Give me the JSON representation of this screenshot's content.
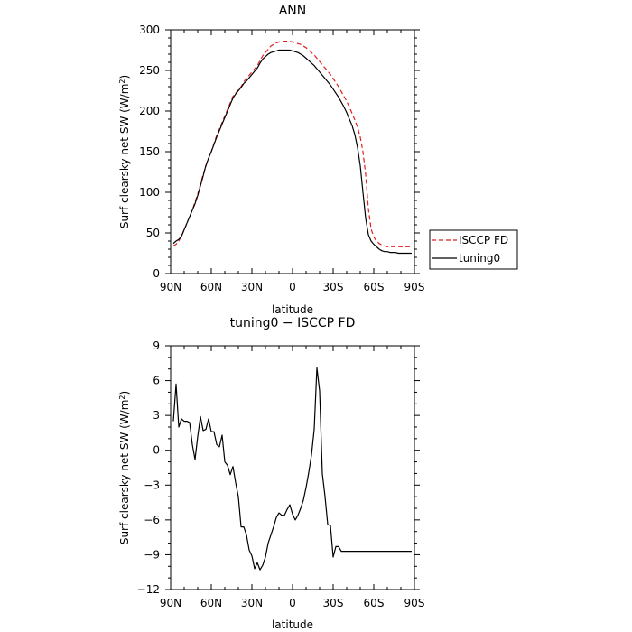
{
  "chart_data": [
    {
      "type": "line",
      "title": "ANN",
      "xlabel": "latitude",
      "ylabel": "Surf clearsky net SW (W/m²)",
      "ylabel_main": "Surf clearsky net SW (W/m",
      "ylabel_sup": "2",
      "ylabel_end": ")",
      "xlim": [
        -90,
        90
      ],
      "ylim": [
        0,
        300
      ],
      "x_ticks": [
        -90,
        -60,
        -30,
        0,
        30,
        60,
        90
      ],
      "x_tick_labels": [
        "90N",
        "60N",
        "30N",
        "0",
        "30S",
        "60S",
        "90S"
      ],
      "y_ticks": [
        0,
        50,
        100,
        150,
        200,
        250,
        300
      ],
      "y_tick_labels": [
        "0",
        "50",
        "100",
        "150",
        "200",
        "250",
        "300"
      ],
      "legend_position": "right",
      "series": [
        {
          "name": "ISCCP FD",
          "color": "#e02020",
          "dash": "dashed",
          "x": [
            -88,
            -86,
            -84,
            -82,
            -80,
            -78,
            -76,
            -74,
            -72,
            -70,
            -68,
            -66,
            -64,
            -62,
            -60,
            -58,
            -56,
            -54,
            -52,
            -50,
            -48,
            -46,
            -44,
            -42,
            -40,
            -38,
            -36,
            -34,
            -32,
            -30,
            -28,
            -26,
            -24,
            -22,
            -20,
            -18,
            -16,
            -14,
            -12,
            -10,
            -8,
            -6,
            -4,
            -2,
            0,
            2,
            4,
            6,
            8,
            10,
            12,
            14,
            16,
            18,
            20,
            22,
            24,
            26,
            28,
            30,
            32,
            34,
            36,
            38,
            40,
            42,
            44,
            46,
            48,
            50,
            52,
            54,
            56,
            58,
            60,
            62,
            64,
            66,
            68,
            70,
            72,
            74,
            76,
            78,
            80,
            82,
            84,
            86,
            88
          ],
          "values": [
            34,
            36,
            40,
            46,
            54,
            62,
            70,
            78,
            88,
            98,
            110,
            122,
            132,
            142,
            150,
            160,
            170,
            178,
            186,
            194,
            202,
            210,
            218,
            222,
            226,
            230,
            236,
            240,
            244,
            248,
            252,
            256,
            262,
            268,
            272,
            276,
            280,
            282,
            284,
            285,
            286,
            286,
            286,
            286,
            285,
            284,
            283,
            282,
            280,
            278,
            275,
            272,
            269,
            265,
            261,
            257,
            253,
            249,
            245,
            240,
            235,
            230,
            224,
            218,
            212,
            205,
            197,
            189,
            180,
            168,
            150,
            122,
            80,
            55,
            45,
            40,
            37,
            35,
            34,
            33,
            33,
            33,
            33,
            33,
            33,
            33,
            33,
            33,
            33
          ],
          "values_visible_note": ""
        },
        {
          "name": "tuning0",
          "color": "#000000",
          "dash": "solid",
          "x": [
            -88,
            -86,
            -84,
            -82,
            -80,
            -78,
            -76,
            -74,
            -72,
            -70,
            -68,
            -66,
            -64,
            -62,
            -60,
            -58,
            -56,
            -54,
            -52,
            -50,
            -48,
            -46,
            -44,
            -42,
            -40,
            -38,
            -36,
            -34,
            -32,
            -30,
            -28,
            -26,
            -24,
            -22,
            -20,
            -18,
            -16,
            -14,
            -12,
            -10,
            -8,
            -6,
            -4,
            -2,
            0,
            2,
            4,
            6,
            8,
            10,
            12,
            14,
            16,
            18,
            20,
            22,
            24,
            26,
            28,
            30,
            32,
            34,
            36,
            38,
            40,
            42,
            44,
            46,
            48,
            50,
            52,
            54,
            56,
            58,
            60,
            62,
            64,
            66,
            68,
            70,
            72,
            74,
            76,
            78,
            80,
            82,
            84,
            86,
            88
          ],
          "values": [
            37,
            40,
            42,
            46,
            54,
            62,
            70,
            78,
            86,
            96,
            108,
            120,
            133,
            142,
            150,
            159,
            168,
            176,
            184,
            192,
            200,
            208,
            216,
            221,
            225,
            229,
            234,
            237,
            241,
            245,
            249,
            253,
            259,
            264,
            267,
            270,
            272,
            273,
            274,
            275,
            275,
            275,
            275,
            275,
            274,
            273,
            272,
            270,
            268,
            265,
            262,
            259,
            256,
            252,
            248,
            244,
            240,
            236,
            232,
            227,
            222,
            217,
            211,
            205,
            198,
            190,
            182,
            171,
            155,
            133,
            100,
            68,
            48,
            40,
            36,
            33,
            30,
            28,
            27,
            27,
            26,
            26,
            26,
            25,
            25,
            25,
            25,
            25,
            25
          ]
        }
      ]
    },
    {
      "type": "line",
      "title": "tuning0 − ISCCP FD",
      "xlabel": "latitude",
      "ylabel": "Surf clearsky net SW (W/m²)",
      "ylabel_main": "Surf clearsky net SW (W/m",
      "ylabel_sup": "2",
      "ylabel_end": ")",
      "xlim": [
        -90,
        90
      ],
      "ylim": [
        -12,
        9
      ],
      "x_ticks": [
        -90,
        -60,
        -30,
        0,
        30,
        60,
        90
      ],
      "x_tick_labels": [
        "90N",
        "60N",
        "30N",
        "0",
        "30S",
        "60S",
        "90S"
      ],
      "y_ticks": [
        -12,
        -9,
        -6,
        -3,
        0,
        3,
        6,
        9
      ],
      "y_tick_labels": [
        "−12",
        "−9",
        "−6",
        "−3",
        "0",
        "3",
        "6",
        "9"
      ],
      "series": [
        {
          "color": "#000000",
          "dash": "solid",
          "x": [
            -88,
            -86,
            -84,
            -82,
            -80,
            -78,
            -76,
            -74,
            -72,
            -70,
            -68,
            -66,
            -64,
            -62,
            -60,
            -58,
            -56,
            -54,
            -52,
            -50,
            -48,
            -46,
            -44,
            -42,
            -40,
            -38,
            -36,
            -34,
            -32,
            -30,
            -28,
            -26,
            -24,
            -22,
            -20,
            -18,
            -16,
            -14,
            -12,
            -10,
            -8,
            -6,
            -4,
            -2,
            0,
            2,
            4,
            6,
            8,
            10,
            12,
            14,
            16,
            18,
            20,
            22,
            24,
            26,
            28,
            30,
            32,
            34,
            36,
            38,
            40,
            42,
            44,
            46,
            48,
            50,
            52,
            54,
            56,
            58,
            60,
            62,
            64,
            66,
            68,
            70,
            72,
            74,
            76,
            78,
            80,
            82,
            84,
            86,
            88
          ],
          "values": [
            2.5,
            5.7,
            2.0,
            2.7,
            2.5,
            2.5,
            2.4,
            0.5,
            -0.8,
            1.2,
            2.9,
            1.7,
            1.8,
            2.7,
            1.6,
            1.6,
            0.5,
            0.3,
            1.3,
            -1.0,
            -1.3,
            -2.1,
            -1.4,
            -2.8,
            -4.0,
            -6.6,
            -6.6,
            -7.3,
            -8.6,
            -9.1,
            -10.2,
            -9.7,
            -10.3,
            -9.9,
            -9.2,
            -8.0,
            -7.3,
            -6.6,
            -5.8,
            -5.4,
            -5.6,
            -5.6,
            -5.1,
            -4.7,
            -5.5,
            -6.0,
            -5.6,
            -5.0,
            -4.3,
            -3.2,
            -1.9,
            -0.4,
            1.8,
            7.1,
            5.1,
            -2.0,
            -4.0,
            -6.4,
            -6.5,
            -9.2,
            -8.3,
            -8.3,
            -8.7,
            -8.7,
            -8.7,
            -8.7,
            -8.7,
            -8.7,
            -8.7,
            -8.7,
            -8.7,
            -8.7,
            -8.7,
            -8.7,
            -8.7,
            -8.7,
            -8.7,
            -8.7,
            -8.7,
            -8.7,
            -8.7,
            -8.7,
            -8.7,
            -8.7,
            -8.7,
            -8.7,
            -8.7,
            -8.7,
            -8.7
          ]
        }
      ]
    }
  ]
}
